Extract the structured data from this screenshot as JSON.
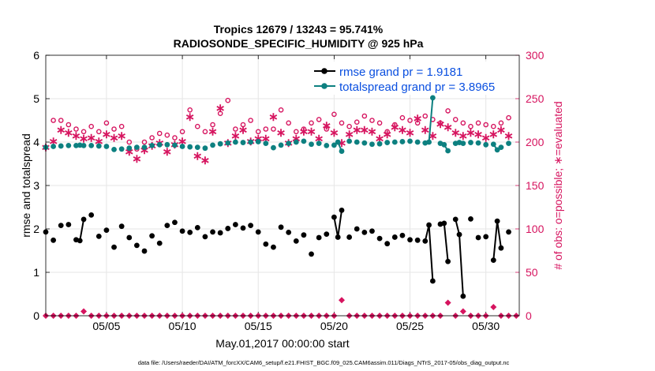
{
  "chart_data": {
    "type": "line",
    "title": "Tropics 12679 / 13243 = 95.741%",
    "subtitle": "RADIOSONDE_SPECIFIC_HUMIDITY @ 925 hPa",
    "xlabel": "May.01,2017 00:00:00 start",
    "ylabel": "rmse and totalspread",
    "ylabel_right": "# of obs: o=possible; ∗=evaluated",
    "footer": "data file: /Users/raeder/DAI/ATM_forcXX/CAM6_setup/f.e21.FHIST_BGC.f09_025.CAM6assim.011/Diags_NTrS_2017-05/obs_diag_output.nc",
    "xlim": [
      1.0,
      32.2
    ],
    "ylim": [
      0,
      6
    ],
    "ylim_right": [
      0,
      300
    ],
    "xticks": [
      5,
      10,
      15,
      20,
      25,
      30
    ],
    "xtick_labels": [
      "05/05",
      "05/10",
      "05/15",
      "05/20",
      "05/25",
      "05/30"
    ],
    "yticks": [
      0,
      1,
      2,
      3,
      4,
      5,
      6
    ],
    "yticks_right": [
      0,
      50,
      100,
      150,
      200,
      250,
      300
    ],
    "legend": [
      "rmse grand pr = 1.9181",
      "totalspread grand pr = 3.8965"
    ],
    "colors": {
      "rmse": "#000000",
      "spread": "#0d8080",
      "obs": "#d6145f"
    },
    "series": [
      {
        "name": "rmse",
        "x": [
          1.0,
          1.5,
          2.0,
          2.5,
          3.0,
          3.25,
          3.5,
          4.0,
          4.5,
          5.0,
          5.5,
          6.0,
          6.5,
          7.0,
          7.5,
          8.0,
          8.5,
          9.0,
          9.5,
          10.0,
          10.5,
          11.0,
          11.5,
          12.0,
          12.5,
          13.0,
          13.5,
          14.0,
          14.5,
          15.0,
          15.5,
          16.0,
          16.5,
          17.0,
          17.5,
          18.0,
          18.5,
          19.0,
          19.5,
          20.0,
          20.25,
          20.5,
          21.0,
          21.5,
          22.0,
          22.5,
          23.0,
          23.5,
          24.0,
          24.5,
          25.0,
          25.5,
          26.0,
          26.25,
          26.5,
          27.0,
          27.25,
          27.5,
          28.0,
          28.25,
          28.5,
          29.0,
          29.5,
          30.0,
          30.5,
          30.75,
          31.0,
          31.5
        ],
        "values": [
          1.93,
          1.74,
          2.08,
          2.1,
          1.75,
          1.73,
          2.22,
          2.32,
          1.83,
          1.97,
          1.58,
          2.06,
          1.8,
          1.62,
          1.49,
          1.84,
          1.67,
          2.08,
          2.15,
          1.95,
          1.92,
          2.03,
          1.82,
          1.93,
          1.91,
          2.01,
          2.1,
          2.02,
          2.08,
          1.93,
          1.65,
          1.58,
          2.04,
          1.92,
          1.72,
          1.86,
          1.42,
          1.8,
          1.88,
          2.27,
          1.81,
          2.43,
          1.81,
          2.0,
          1.92,
          1.95,
          1.78,
          1.66,
          1.81,
          1.85,
          1.75,
          1.74,
          1.72,
          2.09,
          0.8,
          2.11,
          2.13,
          1.25,
          2.22,
          1.87,
          0.45,
          2.23,
          1.8,
          1.82,
          1.28,
          2.18,
          1.56,
          1.93
        ]
      },
      {
        "name": "totalspread",
        "x": [
          1.0,
          1.5,
          2.0,
          2.5,
          3.0,
          3.25,
          3.5,
          4.0,
          4.5,
          5.0,
          5.5,
          6.0,
          6.5,
          7.0,
          7.5,
          8.0,
          8.5,
          9.0,
          9.5,
          10.0,
          10.5,
          11.0,
          11.5,
          12.0,
          12.5,
          13.0,
          13.5,
          14.0,
          14.5,
          15.0,
          15.5,
          16.0,
          16.5,
          17.0,
          17.5,
          18.0,
          18.5,
          19.0,
          19.5,
          20.0,
          20.25,
          20.5,
          21.0,
          21.5,
          22.0,
          22.5,
          23.0,
          23.5,
          24.0,
          24.5,
          25.0,
          25.5,
          26.0,
          26.25,
          26.5,
          27.0,
          27.25,
          27.5,
          28.0,
          28.25,
          28.5,
          29.0,
          29.5,
          30.0,
          30.5,
          30.75,
          31.0,
          31.5
        ],
        "values": [
          3.88,
          3.9,
          3.91,
          3.92,
          3.92,
          3.93,
          3.92,
          3.92,
          3.91,
          3.9,
          3.83,
          3.84,
          3.86,
          3.88,
          3.88,
          3.92,
          3.94,
          3.94,
          3.93,
          3.9,
          3.89,
          3.88,
          3.86,
          3.93,
          3.96,
          3.98,
          4.0,
          3.99,
          4.0,
          4.01,
          3.97,
          3.87,
          3.93,
          3.97,
          4.0,
          4.02,
          3.95,
          3.97,
          3.92,
          3.93,
          4.0,
          3.79,
          4.02,
          4.0,
          3.98,
          3.95,
          3.96,
          3.99,
          4.0,
          4.01,
          4.02,
          4.0,
          3.98,
          4.0,
          5.02,
          3.97,
          3.94,
          3.8,
          3.97,
          3.99,
          3.97,
          3.99,
          3.98,
          3.94,
          3.95,
          3.82,
          3.88,
          3.97
        ]
      }
    ],
    "obs_possible_right": {
      "x": [
        1.5,
        2.0,
        2.5,
        3.0,
        3.5,
        4.0,
        4.5,
        5.0,
        5.5,
        6.0,
        6.5,
        7.0,
        7.5,
        8.0,
        8.5,
        9.0,
        9.5,
        10.0,
        10.5,
        11.0,
        11.5,
        12.0,
        12.5,
        13.0,
        13.5,
        14.0,
        14.5,
        15.0,
        15.5,
        16.0,
        16.5,
        17.0,
        17.5,
        18.0,
        18.5,
        19.0,
        19.5,
        20.0,
        20.5,
        21.0,
        21.5,
        22.0,
        22.5,
        23.0,
        23.5,
        24.0,
        24.5,
        25.0,
        25.5,
        26.0,
        26.5,
        27.0,
        27.5,
        28.0,
        28.5,
        29.0,
        29.5,
        30.0,
        30.5,
        31.0,
        31.5
      ],
      "values": [
        225,
        225,
        220,
        215,
        212,
        218,
        212,
        222,
        215,
        218,
        200,
        192,
        200,
        205,
        210,
        208,
        205,
        212,
        237,
        218,
        212,
        220,
        233,
        248,
        215,
        220,
        225,
        212,
        215,
        215,
        237,
        222,
        212,
        215,
        222,
        226,
        215,
        232,
        222,
        218,
        223,
        230,
        225,
        222,
        212,
        220,
        228,
        225,
        222,
        230,
        226,
        222,
        236,
        226,
        222,
        218,
        222,
        220,
        218,
        222,
        228
      ]
    },
    "obs_evaluated_right": {
      "x": [
        1.0,
        1.5,
        2.0,
        2.5,
        3.0,
        3.5,
        4.0,
        4.5,
        5.0,
        5.5,
        6.0,
        6.5,
        7.0,
        7.5,
        8.0,
        8.5,
        9.0,
        9.5,
        10.0,
        10.5,
        11.0,
        11.5,
        12.0,
        12.5,
        13.0,
        13.5,
        14.0,
        14.5,
        15.0,
        15.5,
        16.0,
        16.5,
        17.0,
        17.5,
        18.0,
        18.5,
        19.0,
        19.5,
        20.0,
        20.5,
        21.0,
        21.5,
        22.0,
        22.5,
        23.0,
        23.5,
        24.0,
        24.5,
        25.0,
        25.5,
        26.0,
        26.5,
        27.0,
        27.5,
        28.0,
        28.5,
        29.0,
        29.5,
        30.0,
        30.5,
        31.0,
        31.5
      ],
      "values": [
        195,
        202,
        215,
        212,
        208,
        205,
        206,
        202,
        210,
        206,
        208,
        190,
        182,
        192,
        197,
        200,
        190,
        198,
        202,
        230,
        185,
        180,
        213,
        240,
        200,
        208,
        215,
        202,
        205,
        205,
        230,
        212,
        200,
        205,
        213,
        213,
        205,
        220,
        212,
        200,
        210,
        215,
        215,
        213,
        205,
        210,
        218,
        215,
        212,
        228,
        215,
        208,
        222,
        218,
        212,
        208,
        212,
        210,
        206,
        210,
        215,
        208
      ]
    },
    "obs_low_right": {
      "x": [
        1.0,
        1.5,
        2.0,
        2.5,
        3.0,
        3.5,
        4.0,
        4.5,
        5.0,
        5.5,
        6.0,
        6.5,
        7.0,
        7.5,
        8.0,
        8.5,
        9.0,
        9.5,
        10.0,
        10.5,
        11.0,
        11.5,
        12.0,
        12.5,
        13.0,
        13.5,
        14.0,
        14.5,
        15.0,
        15.5,
        16.0,
        16.5,
        17.0,
        17.5,
        18.0,
        18.5,
        19.0,
        19.5,
        20.0,
        20.5,
        21.0,
        21.5,
        22.0,
        22.5,
        23.0,
        23.5,
        24.0,
        24.5,
        25.0,
        25.5,
        26.0,
        26.5,
        27.0,
        27.5,
        28.0,
        28.5,
        29.0,
        29.5,
        30.0,
        30.5,
        31.0,
        31.5,
        32.0
      ],
      "values": [
        0,
        0,
        0,
        0,
        0,
        5,
        0,
        0,
        0,
        0,
        0,
        0,
        0,
        0,
        0,
        0,
        0,
        0,
        0,
        0,
        0,
        0,
        0,
        0,
        0,
        0,
        0,
        0,
        0,
        0,
        0,
        0,
        0,
        0,
        0,
        0,
        0,
        0,
        0,
        18,
        0,
        0,
        0,
        0,
        0,
        0,
        0,
        0,
        0,
        0,
        0,
        0,
        0,
        15,
        0,
        5,
        0,
        0,
        0,
        10,
        0,
        0,
        0
      ]
    }
  }
}
